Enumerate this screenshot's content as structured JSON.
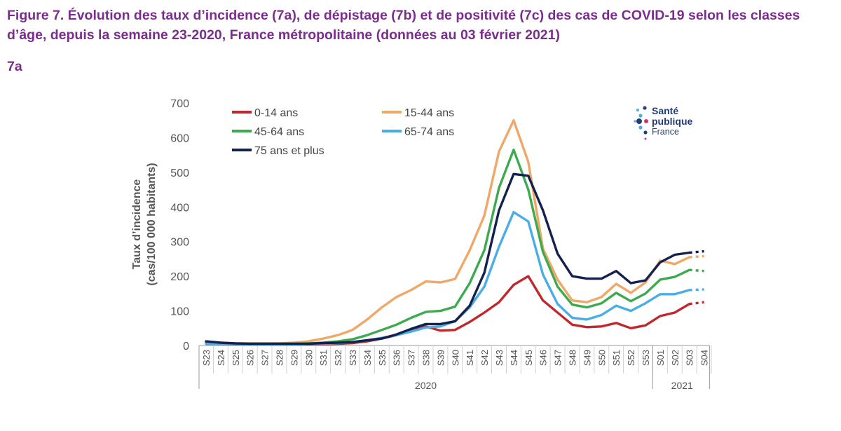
{
  "figure": {
    "title": "Figure 7. Évolution des taux d’incidence (7a), de dépistage (7b) et de positivité (7c) des cas de COVID-19 selon les classes d’âge, depuis la semaine 23-2020, France métropolitaine (données au 03 février 2021)",
    "panel_label": "7a"
  },
  "logo": {
    "line1": "Santé",
    "line2": "publique",
    "line3": "France"
  },
  "chart_data": {
    "type": "line",
    "title": "",
    "xlabel": "",
    "ylabel": "Taux d’incidence (cas/100 000 habitants)",
    "ylabel_lines": [
      "Taux d’incidence",
      "(cas/100 000 habitants)"
    ],
    "ylim": [
      0,
      700
    ],
    "yticks": [
      0,
      100,
      200,
      300,
      400,
      500,
      600,
      700
    ],
    "grid": false,
    "legend": "top-left",
    "categories": [
      "S23",
      "S24",
      "S25",
      "S26",
      "S27",
      "S28",
      "S29",
      "S30",
      "S31",
      "S32",
      "S33",
      "S34",
      "S35",
      "S36",
      "S37",
      "S38",
      "S39",
      "S40",
      "S41",
      "S42",
      "S43",
      "S44",
      "S45",
      "S46",
      "S47",
      "S48",
      "S49",
      "S50",
      "S51",
      "S52",
      "S53",
      "S01",
      "S02",
      "S03",
      "S04"
    ],
    "year_groups": [
      {
        "label": "2020",
        "from": "S23",
        "to": "S53"
      },
      {
        "label": "2021",
        "from": "S01",
        "to": "S04"
      }
    ],
    "series": [
      {
        "name": "0-14 ans",
        "color": "#c0282d",
        "values": [
          5,
          4,
          3,
          3,
          3,
          3,
          3,
          3,
          4,
          5,
          7,
          12,
          20,
          30,
          45,
          55,
          43,
          45,
          68,
          95,
          125,
          175,
          200,
          130,
          95,
          60,
          53,
          55,
          65,
          50,
          58,
          85,
          95,
          120,
          125
        ]
      },
      {
        "name": "15-44 ans",
        "color": "#f0a868",
        "values": [
          10,
          8,
          6,
          6,
          6,
          6,
          8,
          12,
          20,
          30,
          45,
          75,
          110,
          140,
          160,
          185,
          182,
          192,
          275,
          375,
          560,
          650,
          530,
          280,
          190,
          130,
          125,
          140,
          178,
          152,
          182,
          245,
          235,
          255,
          258
        ]
      },
      {
        "name": "45-64 ans",
        "color": "#3daa4f",
        "values": [
          8,
          6,
          5,
          5,
          5,
          5,
          5,
          6,
          8,
          12,
          18,
          30,
          45,
          60,
          80,
          97,
          100,
          112,
          180,
          275,
          455,
          565,
          450,
          270,
          170,
          118,
          110,
          122,
          152,
          128,
          150,
          190,
          198,
          218,
          215
        ]
      },
      {
        "name": "65-74 ans",
        "color": "#4aaee4",
        "values": [
          5,
          4,
          4,
          3,
          3,
          3,
          3,
          4,
          5,
          7,
          10,
          15,
          22,
          30,
          40,
          52,
          55,
          70,
          110,
          170,
          285,
          385,
          358,
          205,
          120,
          80,
          75,
          88,
          115,
          100,
          122,
          148,
          148,
          160,
          162
        ]
      },
      {
        "name": "75 ans et plus",
        "color": "#14214f",
        "values": [
          12,
          8,
          6,
          5,
          5,
          5,
          5,
          5,
          7,
          8,
          10,
          15,
          20,
          32,
          48,
          62,
          62,
          70,
          115,
          210,
          390,
          495,
          490,
          390,
          265,
          200,
          193,
          193,
          215,
          180,
          188,
          240,
          262,
          268,
          272
        ]
      }
    ]
  }
}
